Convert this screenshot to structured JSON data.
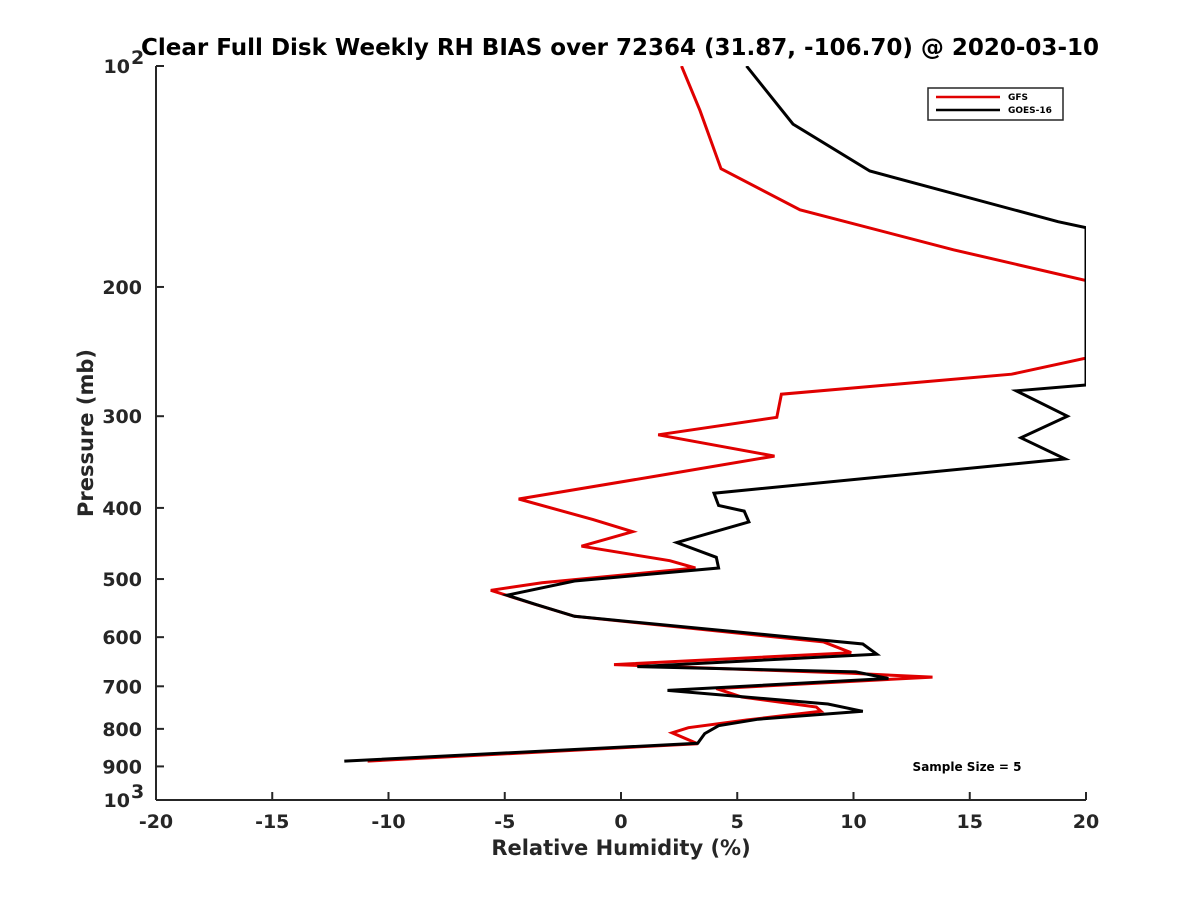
{
  "chart_data": {
    "type": "line",
    "title": "Clear Full Disk Weekly RH BIAS over 72364 (31.87, -106.70) @ 2020-03-10",
    "xlabel": "Relative Humidity (%)",
    "ylabel": "Pressure (mb)",
    "xlim": [
      -20,
      20
    ],
    "ylim": [
      1000,
      100
    ],
    "y_scale": "log",
    "x_ticks": [
      "-20",
      "-15",
      "-10",
      "-5",
      "0",
      "5",
      "10",
      "15",
      "20"
    ],
    "y_ticks": [
      {
        "value": 100,
        "base": "10",
        "exp": "2"
      },
      {
        "value": 200,
        "label": "200"
      },
      {
        "value": 300,
        "label": "300"
      },
      {
        "value": 400,
        "label": "400"
      },
      {
        "value": 500,
        "label": "500"
      },
      {
        "value": 600,
        "label": "600"
      },
      {
        "value": 700,
        "label": "700"
      },
      {
        "value": 800,
        "label": "800"
      },
      {
        "value": 900,
        "label": "900"
      },
      {
        "value": 1000,
        "base": "10",
        "exp": "3"
      }
    ],
    "legend_position": "top-right",
    "grid": false,
    "annotation": "Sample Size = 5",
    "series": [
      {
        "name": "GFS",
        "color": "#e00000",
        "points": [
          [
            2.6,
            100
          ],
          [
            3.4,
            115
          ],
          [
            4.3,
            138
          ],
          [
            7.7,
            157
          ],
          [
            14.3,
            178
          ],
          [
            20,
            196
          ],
          [
            20,
            250
          ],
          [
            16.8,
            263
          ],
          [
            6.9,
            280
          ],
          [
            6.7,
            301
          ],
          [
            1.6,
            318
          ],
          [
            6.6,
            340
          ],
          [
            1.5,
            362
          ],
          [
            -4.4,
            389
          ],
          [
            -1.2,
            415
          ],
          [
            0.5,
            431
          ],
          [
            -1.7,
            451
          ],
          [
            2.1,
            472
          ],
          [
            3.2,
            483
          ],
          [
            -3.4,
            506
          ],
          [
            -5.6,
            518
          ],
          [
            -3.8,
            540
          ],
          [
            -2,
            562
          ],
          [
            8.7,
            609
          ],
          [
            9.9,
            630
          ],
          [
            -0.3,
            654
          ],
          [
            9.9,
            672
          ],
          [
            13.4,
            680
          ],
          [
            4.1,
            705
          ],
          [
            5.2,
            724
          ],
          [
            8.4,
            747
          ],
          [
            8.6,
            757
          ],
          [
            5.4,
            778
          ],
          [
            2.9,
            797
          ],
          [
            2.2,
            810
          ],
          [
            3.3,
            838
          ],
          [
            -10.9,
            885
          ]
        ]
      },
      {
        "name": "GOES-16",
        "color": "#000000",
        "points": [
          [
            5.4,
            100
          ],
          [
            7.4,
            120
          ],
          [
            10.7,
            139
          ],
          [
            18.8,
            163
          ],
          [
            20,
            166
          ],
          [
            20,
            272
          ],
          [
            17,
            277
          ],
          [
            19.2,
            300
          ],
          [
            17.2,
            321
          ],
          [
            19.1,
            343
          ],
          [
            4,
            382
          ],
          [
            4.2,
            397
          ],
          [
            5.3,
            404
          ],
          [
            5.5,
            418
          ],
          [
            2.4,
            446
          ],
          [
            4.1,
            467
          ],
          [
            4.2,
            483
          ],
          [
            -2,
            503
          ],
          [
            -4.9,
            526
          ],
          [
            -3.7,
            541
          ],
          [
            -2,
            562
          ],
          [
            10.4,
            613
          ],
          [
            11,
            633
          ],
          [
            0.7,
            658
          ],
          [
            10.1,
            669
          ],
          [
            11.5,
            683
          ],
          [
            2,
            709
          ],
          [
            8.9,
            740
          ],
          [
            10.4,
            757
          ],
          [
            5.9,
            776
          ],
          [
            4.2,
            792
          ],
          [
            3.6,
            812
          ],
          [
            3.3,
            837
          ],
          [
            -11.9,
            885
          ]
        ]
      }
    ]
  }
}
